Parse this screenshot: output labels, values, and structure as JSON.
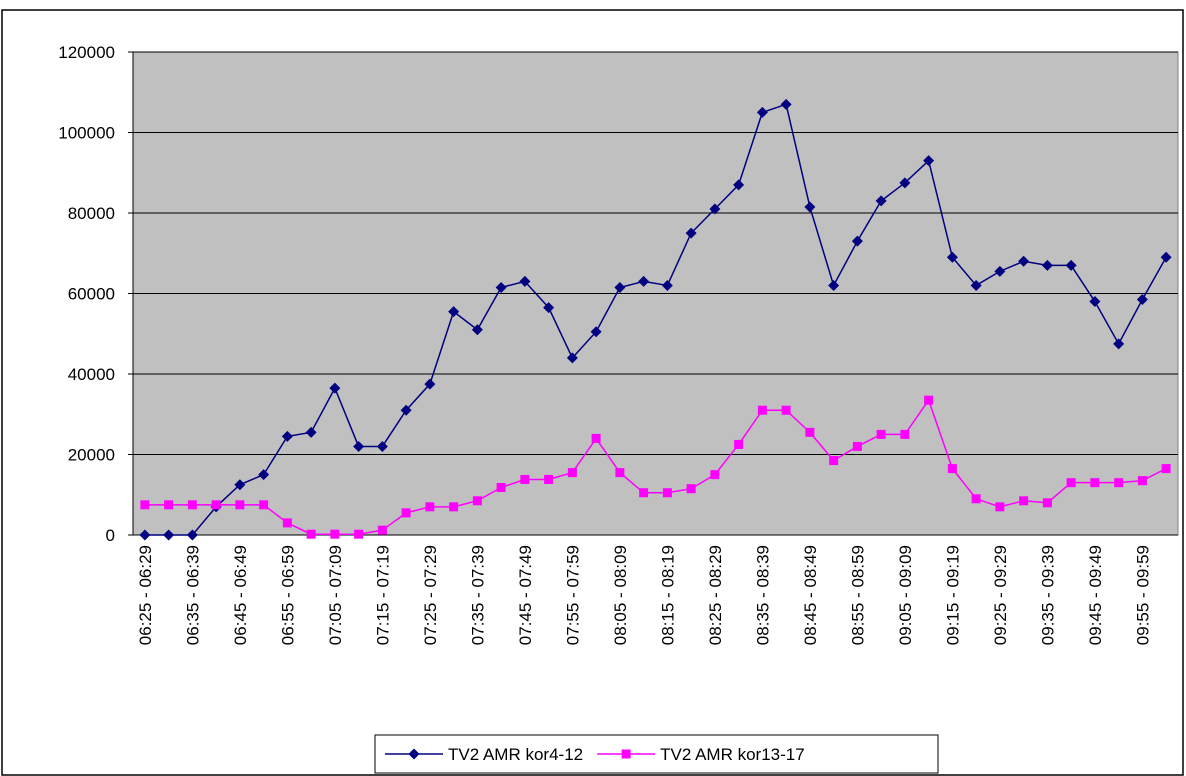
{
  "chart_data": {
    "type": "line",
    "categories": [
      "06:25 - 06:29",
      null,
      "06:35 - 06:39",
      null,
      "06:45 - 06:49",
      null,
      "06:55 - 06:59",
      null,
      "07:05 - 07:09",
      null,
      "07:15 - 07:19",
      null,
      "07:25 - 07:29",
      null,
      "07:35 - 07:39",
      null,
      "07:45 - 07:49",
      null,
      "07:55 - 07:59",
      null,
      "08:05 - 08:09",
      null,
      "08:15 - 08:19",
      null,
      "08:25 - 08:29",
      null,
      "08:35 - 08:39",
      null,
      "08:45 - 08:49",
      null,
      "08:55 - 08:59",
      null,
      "09:05 - 09:09",
      null,
      "09:15 - 09:19",
      null,
      "09:25 - 09:29",
      null,
      "09:35 - 09:39",
      null,
      "09:45 - 09:49",
      null,
      "09:55 - 09:59",
      null
    ],
    "series": [
      {
        "name": "TV2 AMR kor4-12",
        "color": "#000080",
        "marker": "diamond",
        "values": [
          0,
          0,
          0,
          7000,
          12500,
          15000,
          24500,
          25500,
          36500,
          22000,
          22000,
          31000,
          37500,
          55500,
          51000,
          61500,
          63000,
          56500,
          44000,
          50500,
          61500,
          63000,
          62000,
          75000,
          81000,
          87000,
          105000,
          107000,
          81500,
          62000,
          73000,
          83000,
          87500,
          93000,
          69000,
          62000,
          65500,
          68000,
          67000,
          67000,
          58000,
          47500,
          58500,
          69000
        ]
      },
      {
        "name": "TV2 AMR kor13-17",
        "color": "#ff00ff",
        "marker": "square",
        "values": [
          7500,
          7500,
          7500,
          7500,
          7500,
          7500,
          3000,
          200,
          200,
          200,
          1200,
          5500,
          7000,
          7000,
          8500,
          11800,
          13800,
          13800,
          15500,
          24000,
          15500,
          10500,
          10500,
          11500,
          15000,
          22500,
          31000,
          31000,
          25500,
          18500,
          22000,
          25000,
          25000,
          33500,
          16500,
          9000,
          7000,
          8500,
          8000,
          13000,
          13000,
          13000,
          13500,
          16500
        ]
      }
    ],
    "ylim": [
      0,
      120000
    ],
    "yticks": [
      0,
      20000,
      40000,
      60000,
      80000,
      100000,
      120000
    ],
    "grid": true,
    "legend": "bottom"
  }
}
